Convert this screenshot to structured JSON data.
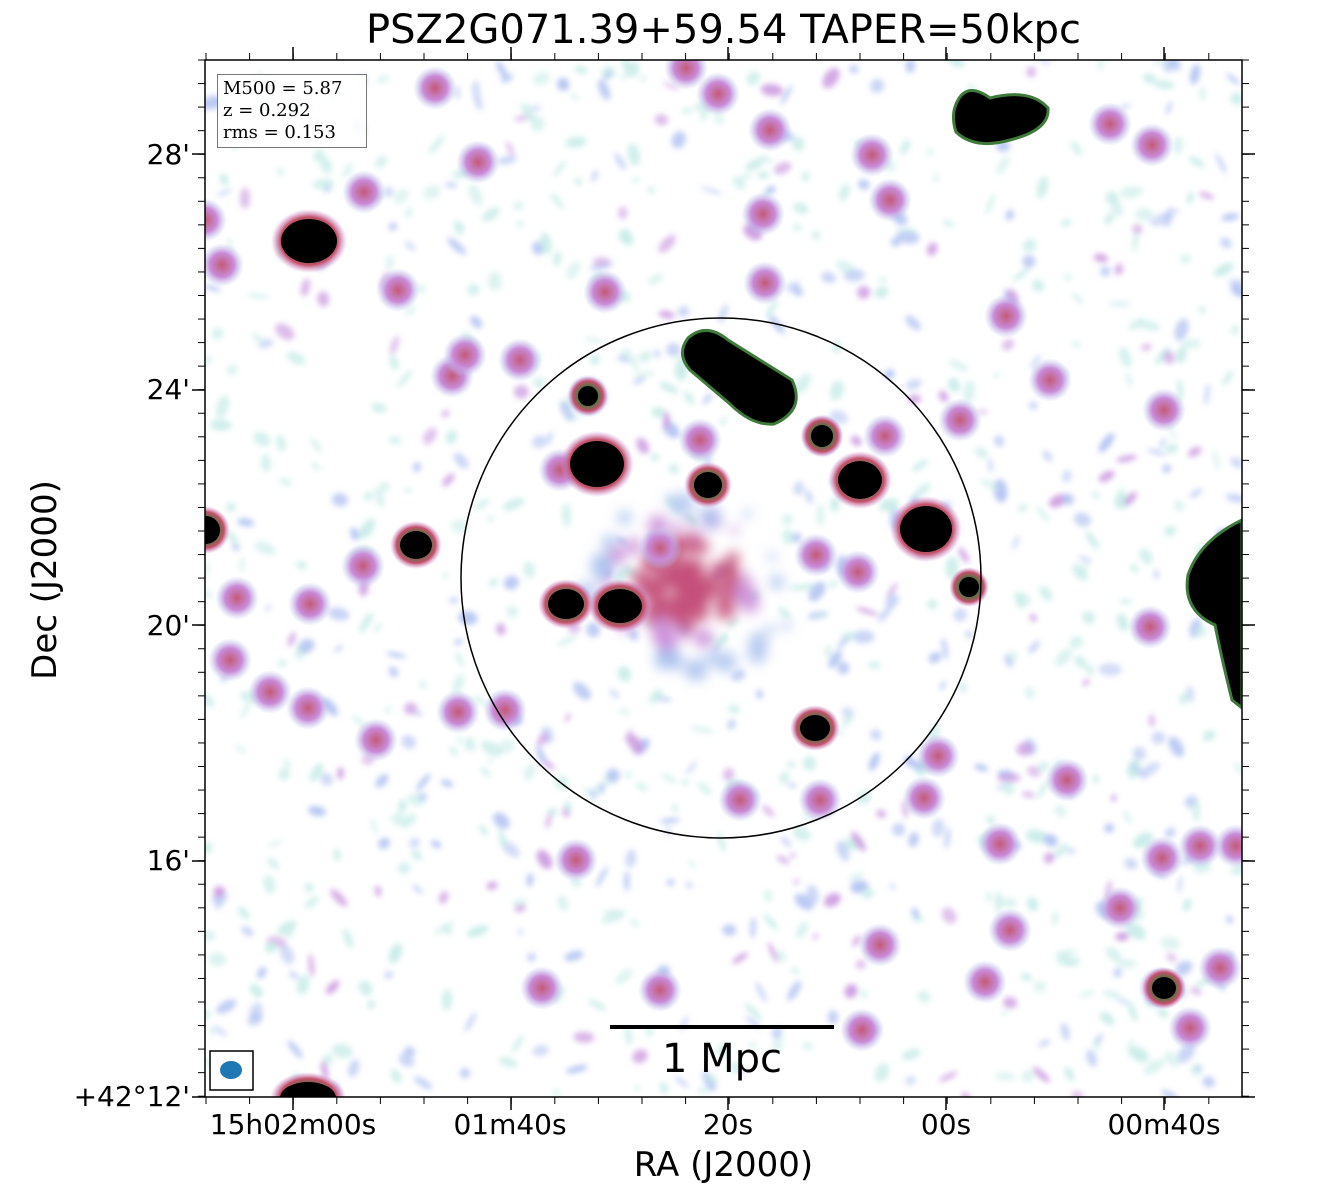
{
  "figure": {
    "title": "PSZ2G071.39+59.54 TAPER=50kpc",
    "xlabel": "RA (J2000)",
    "ylabel": "Dec (J2000)",
    "yticks": [
      "28'",
      "24'",
      "20'",
      "16'",
      "+42°12'"
    ],
    "xticks": [
      "15h02m00s",
      "01m40s",
      "20s",
      "00s",
      "00m40s"
    ],
    "info": {
      "mass": "M500 = 5.87",
      "redshift": "z = 0.292",
      "rms": "rms = 0.153"
    },
    "scale_bar_label": "1 Mpc",
    "colors": {
      "source": "#000000",
      "beam": "#1f77b4",
      "circle": "#000000"
    }
  }
}
